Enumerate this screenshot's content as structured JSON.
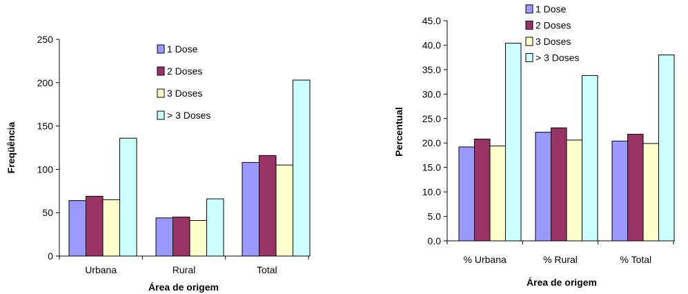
{
  "series_colors": [
    "#9999ff",
    "#993366",
    "#ffffcc",
    "#ccffff"
  ],
  "chart_data": [
    {
      "type": "bar",
      "title": "",
      "xlabel": "Área de origem",
      "ylabel": "Freqüência",
      "categories": [
        "Urbana",
        "Rural",
        "Total"
      ],
      "ylim": [
        0,
        250
      ],
      "yticks": [
        "0",
        "50",
        "100",
        "150",
        "200",
        "250"
      ],
      "grid": false,
      "legend_position": "upper-middle",
      "series": [
        {
          "name": "1 Dose",
          "values": [
            64,
            44,
            108
          ]
        },
        {
          "name": "2 Doses",
          "values": [
            69,
            45,
            116
          ]
        },
        {
          "name": "3 Doses",
          "values": [
            65,
            41,
            105
          ]
        },
        {
          "name": "> 3 Doses",
          "values": [
            136,
            66,
            203
          ]
        }
      ]
    },
    {
      "type": "bar",
      "title": "",
      "xlabel": "Área de origem",
      "ylabel": "Percentual",
      "categories": [
        "% Urbana",
        "% Rural",
        "% Total"
      ],
      "ylim": [
        0,
        45
      ],
      "yticks": [
        "0.0",
        "5.0",
        "10.0",
        "15.0",
        "20.0",
        "25.0",
        "30.0",
        "35.0",
        "40.0",
        "45.0"
      ],
      "grid": false,
      "legend_position": "top",
      "series": [
        {
          "name": "1 Dose",
          "values": [
            19.2,
            22.2,
            20.4
          ]
        },
        {
          "name": "2 Doses",
          "values": [
            20.8,
            23.1,
            21.8
          ]
        },
        {
          "name": "3 Doses",
          "values": [
            19.4,
            20.6,
            19.9
          ]
        },
        {
          "name": "> 3 Doses",
          "values": [
            40.4,
            33.8,
            38.0
          ]
        }
      ]
    }
  ]
}
